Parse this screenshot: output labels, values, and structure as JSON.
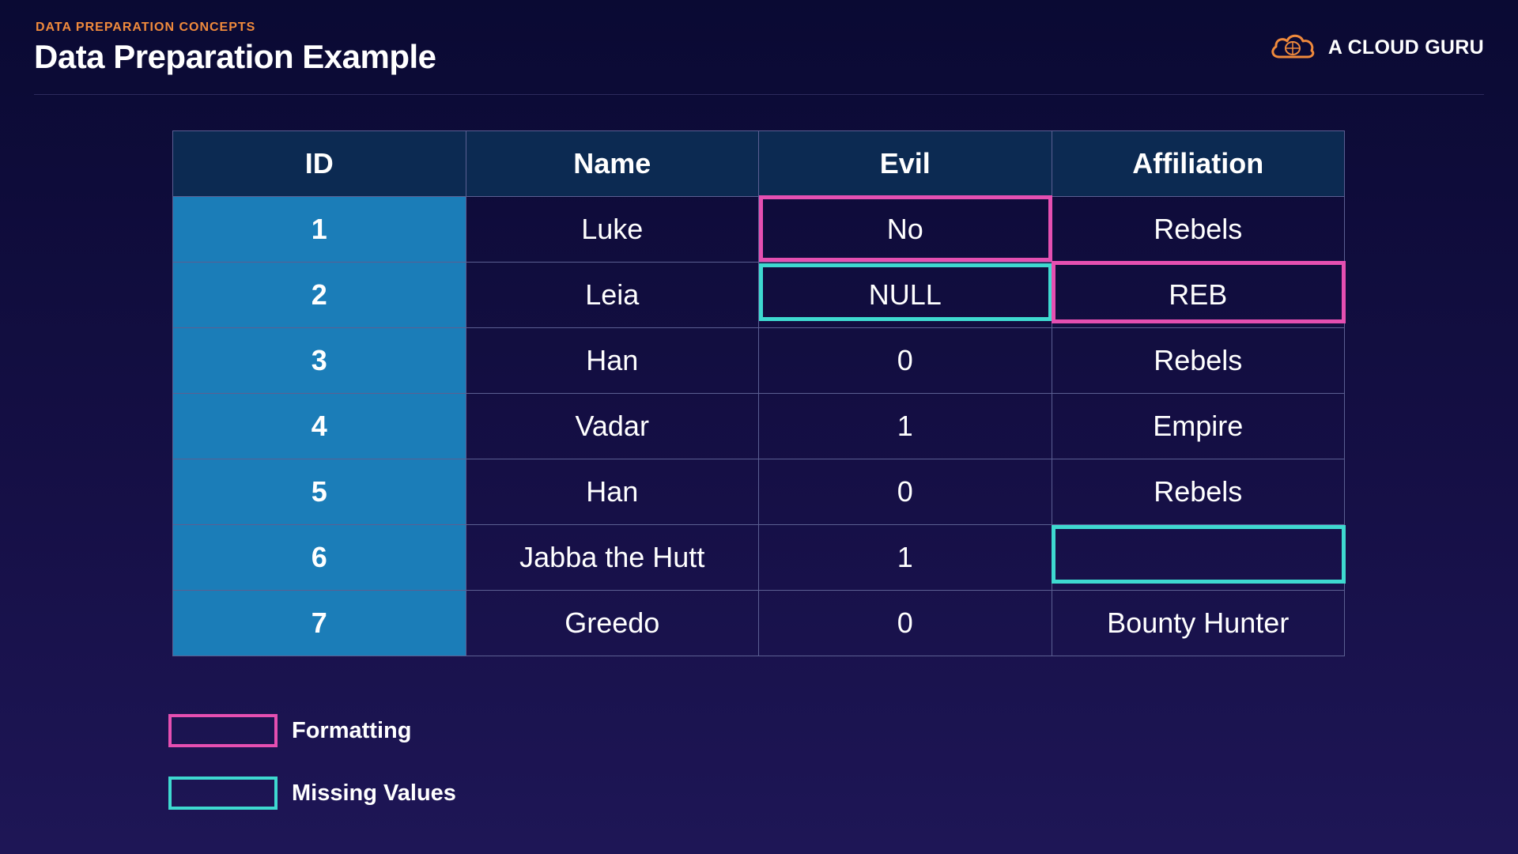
{
  "header": {
    "eyebrow": "DATA PREPARATION CONCEPTS",
    "title": "Data Preparation Example",
    "brand_name": "A CLOUD GURU",
    "brand_icon": "cloud-icon"
  },
  "table": {
    "columns": [
      "ID",
      "Name",
      "Evil",
      "Affiliation"
    ],
    "rows": [
      [
        "1",
        "Luke",
        "No",
        "Rebels"
      ],
      [
        "2",
        "Leia",
        "NULL",
        "REB"
      ],
      [
        "3",
        "Han",
        "0",
        "Rebels"
      ],
      [
        "4",
        "Vadar",
        "1",
        "Empire"
      ],
      [
        "5",
        "Han",
        "0",
        "Rebels"
      ],
      [
        "6",
        "Jabba the Hutt",
        "1",
        ""
      ],
      [
        "7",
        "Greedo",
        "0",
        "Bounty Hunter"
      ]
    ]
  },
  "legend": {
    "formatting_label": "Formatting",
    "missing_label": "Missing Values"
  },
  "colors": {
    "formatting": "#e54fb1",
    "missing_values": "#3ed9d0",
    "id_column": "#1b7db8",
    "header_row": "#0c2a52",
    "accent_orange": "#f08a3c"
  }
}
